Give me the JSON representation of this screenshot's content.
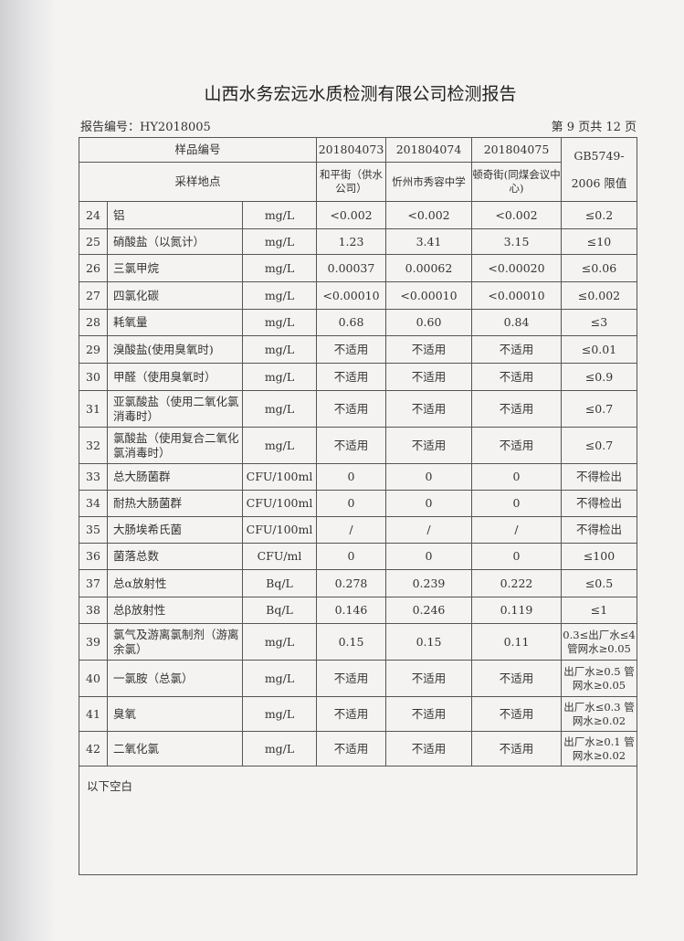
{
  "title": "山西水务宏远水质检测有限公司检测报告",
  "report_no": "报告编号：HY2018005",
  "page": "第 9 页共 12 页",
  "header": {
    "sample_no_label": "样品编号",
    "site_label": "采样地点",
    "samples": [
      "201804073",
      "201804074",
      "201804075"
    ],
    "sites": [
      "和平街（供水公司）",
      "忻州市秀容中学",
      "顿奇街(同煤会议中心)"
    ],
    "limit_label_1": "GB5749-",
    "limit_label_2": "2006 限值"
  },
  "rows": [
    {
      "no": "24",
      "item": "铝",
      "unit": "mg/L",
      "v": [
        "<0.002",
        "<0.002",
        "<0.002"
      ],
      "limit": "≤0.2"
    },
    {
      "no": "25",
      "item": "硝酸盐（以氮计）",
      "unit": "mg/L",
      "v": [
        "1.23",
        "3.41",
        "3.15"
      ],
      "limit": "≤10"
    },
    {
      "no": "26",
      "item": "三氯甲烷",
      "unit": "mg/L",
      "v": [
        "0.00037",
        "0.00062",
        "<0.00020"
      ],
      "limit": "≤0.06"
    },
    {
      "no": "27",
      "item": "四氯化碳",
      "unit": "mg/L",
      "v": [
        "<0.00010",
        "<0.00010",
        "<0.00010"
      ],
      "limit": "≤0.002"
    },
    {
      "no": "28",
      "item": "耗氧量",
      "unit": "mg/L",
      "v": [
        "0.68",
        "0.60",
        "0.84"
      ],
      "limit": "≤3"
    },
    {
      "no": "29",
      "item": "溴酸盐(使用臭氧时)",
      "unit": "mg/L",
      "v": [
        "不适用",
        "不适用",
        "不适用"
      ],
      "limit": "≤0.01"
    },
    {
      "no": "30",
      "item": "甲醛（使用臭氧时）",
      "unit": "mg/L",
      "v": [
        "不适用",
        "不适用",
        "不适用"
      ],
      "limit": "≤0.9"
    },
    {
      "no": "31",
      "item": "亚氯酸盐（使用二氧化氯消毒时）",
      "unit": "mg/L",
      "v": [
        "不适用",
        "不适用",
        "不适用"
      ],
      "limit": "≤0.7"
    },
    {
      "no": "32",
      "item": "氯酸盐（使用复合二氧化氯消毒时）",
      "unit": "mg/L",
      "v": [
        "不适用",
        "不适用",
        "不适用"
      ],
      "limit": "≤0.7"
    },
    {
      "no": "33",
      "item": "总大肠菌群",
      "unit": "CFU/100ml",
      "v": [
        "0",
        "0",
        "0"
      ],
      "limit": "不得检出"
    },
    {
      "no": "34",
      "item": "耐热大肠菌群",
      "unit": "CFU/100ml",
      "v": [
        "0",
        "0",
        "0"
      ],
      "limit": "不得检出"
    },
    {
      "no": "35",
      "item": "大肠埃希氏菌",
      "unit": "CFU/100ml",
      "v": [
        "/",
        "/",
        "/"
      ],
      "limit": "不得检出"
    },
    {
      "no": "36",
      "item": "菌落总数",
      "unit": "CFU/ml",
      "v": [
        "0",
        "0",
        "0"
      ],
      "limit": "≤100"
    },
    {
      "no": "37",
      "item": "总α放射性",
      "unit": "Bq/L",
      "v": [
        "0.278",
        "0.239",
        "0.222"
      ],
      "limit": "≤0.5"
    },
    {
      "no": "38",
      "item": "总β放射性",
      "unit": "Bq/L",
      "v": [
        "0.146",
        "0.246",
        "0.119"
      ],
      "limit": "≤1"
    },
    {
      "no": "39",
      "item": "氯气及游离氯制剂（游离余氯）",
      "unit": "mg/L",
      "v": [
        "0.15",
        "0.15",
        "0.11"
      ],
      "limit": "0.3≤出厂水≤4 管网水≥0.05"
    },
    {
      "no": "40",
      "item": "一氯胺（总氯）",
      "unit": "mg/L",
      "v": [
        "不适用",
        "不适用",
        "不适用"
      ],
      "limit": "出厂水≥0.5 管网水≥0.05"
    },
    {
      "no": "41",
      "item": "臭氧",
      "unit": "mg/L",
      "v": [
        "不适用",
        "不适用",
        "不适用"
      ],
      "limit": "出厂水≤0.3 管网水≥0.02"
    },
    {
      "no": "42",
      "item": "二氧化氯",
      "unit": "mg/L",
      "v": [
        "不适用",
        "不适用",
        "不适用"
      ],
      "limit": "出厂水≥0.1 管网水≥0.02"
    }
  ],
  "footer_note": "以下空白"
}
